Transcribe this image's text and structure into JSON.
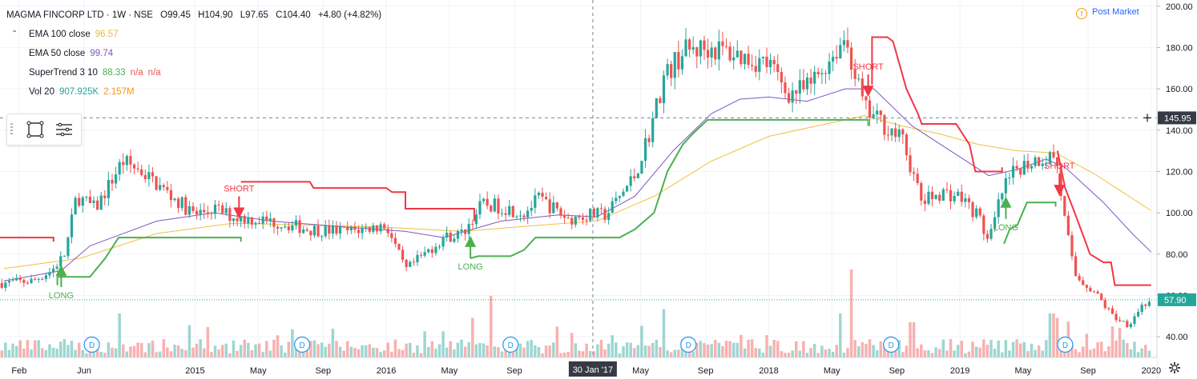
{
  "header": {
    "symbol": "MAGMA FINCORP LTD · 1W · NSE",
    "open": "O99.45",
    "high": "H104.90",
    "low": "L97.65",
    "close": "C104.40",
    "change": "+4.80 (+4.82%)"
  },
  "indicators": [
    {
      "label": "EMA 100 close",
      "value": "96.57",
      "value2": "",
      "color": "#e8b84a"
    },
    {
      "label": "EMA 50 close",
      "value": "99.74",
      "value2": "",
      "color": "#7e57c2"
    },
    {
      "label": "SuperTrend 3 10",
      "value": "88.33",
      "value2": "n/a",
      "value3": "n/a",
      "color": "#4caf50",
      "color2": "#ef5350"
    },
    {
      "label": "Vol 20",
      "value": "907.925K",
      "value2": "2.157M",
      "color": "#26a69a",
      "color2": "#ff9800"
    }
  ],
  "toolbar": {
    "icons": [
      "rectangle-icon",
      "menu-lines-icon"
    ]
  },
  "status": {
    "post_market": "Post Market",
    "icon": "warning-icon"
  },
  "colors": {
    "up": "#26a69a",
    "down": "#ef5350",
    "supertrend_up": "#4caf50",
    "supertrend_down": "#f23645",
    "ema100": "#f0c040",
    "ema50": "#7e57c2"
  },
  "chart_data": {
    "type": "candlestick",
    "interval": "1W",
    "y_axis": {
      "ticks": [
        40,
        60,
        80,
        100,
        120,
        140,
        160,
        180,
        200
      ],
      "range": [
        30,
        203
      ],
      "position": "right"
    },
    "x_axis": {
      "ticks": [
        {
          "label": "Feb",
          "t": 2014.08
        },
        {
          "label": "Jun",
          "t": 2014.42
        },
        {
          "label": "2015",
          "t": 2015.0
        },
        {
          "label": "May",
          "t": 2015.33
        },
        {
          "label": "Sep",
          "t": 2015.67
        },
        {
          "label": "2016",
          "t": 2016.0
        },
        {
          "label": "May",
          "t": 2016.33
        },
        {
          "label": "Sep",
          "t": 2016.67
        },
        {
          "label": "May",
          "t": 2017.33
        },
        {
          "label": "Sep",
          "t": 2017.67
        },
        {
          "label": "2018",
          "t": 2018.0
        },
        {
          "label": "May",
          "t": 2018.33
        },
        {
          "label": "Sep",
          "t": 2018.67
        },
        {
          "label": "2019",
          "t": 2019.0
        },
        {
          "label": "May",
          "t": 2019.33
        },
        {
          "label": "Sep",
          "t": 2019.67
        },
        {
          "label": "2020",
          "t": 2020.0
        }
      ],
      "range": [
        2013.98,
        2020.03
      ]
    },
    "crosshair": {
      "date_label": "30 Jan '17",
      "t": 2017.08,
      "price_label": "145.95",
      "price": 145.95
    },
    "last_price": {
      "label": "57.90",
      "price": 57.9
    },
    "signals": [
      {
        "type": "LONG",
        "t": 2014.3,
        "price": 71
      },
      {
        "type": "SHORT",
        "t": 2015.23,
        "price": 101
      },
      {
        "type": "LONG",
        "t": 2016.44,
        "price": 85
      },
      {
        "type": "SHORT",
        "t": 2018.52,
        "price": 160
      },
      {
        "type": "LONG",
        "t": 2019.24,
        "price": 104
      },
      {
        "type": "SHORT",
        "t": 2019.52,
        "price": 112
      }
    ],
    "dividends": [
      {
        "label": "D",
        "t": 2014.46
      },
      {
        "label": "D",
        "t": 2015.56
      },
      {
        "label": "D",
        "t": 2016.65
      },
      {
        "label": "D",
        "t": 2017.58
      },
      {
        "label": "D",
        "t": 2018.64
      },
      {
        "label": "D",
        "t": 2019.55
      }
    ],
    "price_path": [
      [
        2014.0,
        66
      ],
      [
        2014.15,
        67
      ],
      [
        2014.25,
        72
      ],
      [
        2014.32,
        80
      ],
      [
        2014.38,
        108
      ],
      [
        2014.48,
        102
      ],
      [
        2014.62,
        125
      ],
      [
        2014.72,
        120
      ],
      [
        2014.85,
        110
      ],
      [
        2015.0,
        99
      ],
      [
        2015.1,
        102
      ],
      [
        2015.2,
        98
      ],
      [
        2015.3,
        97
      ],
      [
        2015.45,
        95
      ],
      [
        2015.6,
        92
      ],
      [
        2015.8,
        91
      ],
      [
        2016.0,
        94
      ],
      [
        2016.1,
        72
      ],
      [
        2016.2,
        80
      ],
      [
        2016.3,
        88
      ],
      [
        2016.4,
        90
      ],
      [
        2016.5,
        104
      ],
      [
        2016.6,
        103
      ],
      [
        2016.72,
        100
      ],
      [
        2016.8,
        107
      ],
      [
        2016.95,
        97
      ],
      [
        2017.05,
        99
      ],
      [
        2017.15,
        99
      ],
      [
        2017.3,
        118
      ],
      [
        2017.38,
        140
      ],
      [
        2017.45,
        165
      ],
      [
        2017.55,
        178
      ],
      [
        2017.7,
        180
      ],
      [
        2017.85,
        176
      ],
      [
        2018.0,
        172
      ],
      [
        2018.1,
        158
      ],
      [
        2018.2,
        160
      ],
      [
        2018.3,
        172
      ],
      [
        2018.4,
        185
      ],
      [
        2018.45,
        168
      ],
      [
        2018.5,
        150
      ],
      [
        2018.6,
        143
      ],
      [
        2018.7,
        135
      ],
      [
        2018.8,
        105
      ],
      [
        2018.9,
        110
      ],
      [
        2019.0,
        108
      ],
      [
        2019.1,
        98
      ],
      [
        2019.15,
        85
      ],
      [
        2019.22,
        110
      ],
      [
        2019.3,
        122
      ],
      [
        2019.4,
        126
      ],
      [
        2019.5,
        128
      ],
      [
        2019.55,
        95
      ],
      [
        2019.6,
        70
      ],
      [
        2019.7,
        62
      ],
      [
        2019.8,
        50
      ],
      [
        2019.88,
        46
      ],
      [
        2019.95,
        55
      ],
      [
        2020.0,
        58
      ]
    ],
    "ema100": [
      [
        2014.0,
        73
      ],
      [
        2014.4,
        78
      ],
      [
        2014.8,
        90
      ],
      [
        2015.2,
        95
      ],
      [
        2015.6,
        94
      ],
      [
        2016.0,
        93
      ],
      [
        2016.4,
        91
      ],
      [
        2016.8,
        94
      ],
      [
        2017.1,
        96
      ],
      [
        2017.4,
        108
      ],
      [
        2017.7,
        125
      ],
      [
        2018.0,
        137
      ],
      [
        2018.3,
        143
      ],
      [
        2018.5,
        147
      ],
      [
        2018.7,
        142
      ],
      [
        2018.9,
        138
      ],
      [
        2019.1,
        133
      ],
      [
        2019.3,
        130
      ],
      [
        2019.5,
        129
      ],
      [
        2019.7,
        119
      ],
      [
        2019.9,
        107
      ],
      [
        2020.0,
        101
      ]
    ],
    "ema50": [
      [
        2014.0,
        67
      ],
      [
        2014.3,
        72
      ],
      [
        2014.45,
        84
      ],
      [
        2014.8,
        96
      ],
      [
        2015.1,
        100
      ],
      [
        2015.4,
        96
      ],
      [
        2015.8,
        93
      ],
      [
        2016.1,
        91
      ],
      [
        2016.3,
        88
      ],
      [
        2016.6,
        96
      ],
      [
        2016.9,
        99
      ],
      [
        2017.1,
        98
      ],
      [
        2017.3,
        108
      ],
      [
        2017.5,
        130
      ],
      [
        2017.7,
        148
      ],
      [
        2017.85,
        155
      ],
      [
        2018.0,
        156
      ],
      [
        2018.2,
        154
      ],
      [
        2018.4,
        160
      ],
      [
        2018.55,
        160
      ],
      [
        2018.75,
        142
      ],
      [
        2018.95,
        130
      ],
      [
        2019.15,
        118
      ],
      [
        2019.3,
        121
      ],
      [
        2019.45,
        126
      ],
      [
        2019.55,
        122
      ],
      [
        2019.75,
        105
      ],
      [
        2019.9,
        90
      ],
      [
        2020.0,
        81
      ]
    ],
    "supertrend_down": [
      [
        [
          2013.98,
          88
        ],
        [
          2014.26,
          88
        ],
        [
          2014.26,
          86
        ]
      ],
      [
        [
          2015.24,
          115
        ],
        [
          2015.6,
          115
        ],
        [
          2015.62,
          112
        ],
        [
          2016.0,
          112
        ],
        [
          2016.03,
          110
        ],
        [
          2016.1,
          110
        ],
        [
          2016.1,
          102
        ],
        [
          2016.46,
          102
        ],
        [
          2016.46,
          96
        ]
      ],
      [
        [
          2018.54,
          162
        ],
        [
          2018.54,
          185
        ],
        [
          2018.62,
          185
        ],
        [
          2018.65,
          183
        ],
        [
          2018.72,
          160
        ],
        [
          2018.78,
          148
        ],
        [
          2018.8,
          143
        ],
        [
          2018.98,
          143
        ],
        [
          2019.05,
          133
        ],
        [
          2019.08,
          120
        ],
        [
          2019.22,
          120
        ],
        [
          2019.22,
          122
        ]
      ],
      [
        [
          2019.51,
          130
        ],
        [
          2019.55,
          112
        ],
        [
          2019.6,
          100
        ],
        [
          2019.68,
          80
        ],
        [
          2019.75,
          76
        ],
        [
          2019.79,
          76
        ],
        [
          2019.81,
          65
        ],
        [
          2020.0,
          65
        ]
      ]
    ],
    "supertrend_up": [
      [
        [
          2014.28,
          65
        ],
        [
          2014.28,
          69
        ],
        [
          2014.45,
          69
        ],
        [
          2014.53,
          78
        ],
        [
          2014.6,
          88
        ],
        [
          2015.24,
          88
        ],
        [
          2015.24,
          86
        ]
      ],
      [
        [
          2016.44,
          78
        ],
        [
          2016.48,
          79
        ],
        [
          2016.65,
          79
        ],
        [
          2016.72,
          82
        ],
        [
          2016.78,
          88
        ],
        [
          2017.22,
          88
        ],
        [
          2017.3,
          92
        ],
        [
          2017.4,
          100
        ],
        [
          2017.47,
          120
        ],
        [
          2017.55,
          133
        ],
        [
          2017.6,
          138
        ],
        [
          2017.68,
          145
        ],
        [
          2018.52,
          145
        ],
        [
          2018.52,
          142
        ]
      ],
      [
        [
          2019.23,
          85
        ],
        [
          2019.26,
          92
        ],
        [
          2019.3,
          94
        ],
        [
          2019.35,
          105
        ],
        [
          2019.5,
          105
        ],
        [
          2019.5,
          103
        ]
      ]
    ],
    "volume_spikes": [
      {
        "t": 2014.6,
        "h": 0.5
      },
      {
        "t": 2016.45,
        "h": 0.45
      },
      {
        "t": 2016.55,
        "h": 0.7
      },
      {
        "t": 2016.9,
        "h": 0.35
      },
      {
        "t": 2017.45,
        "h": 0.55
      },
      {
        "t": 2018.43,
        "h": 1.0
      },
      {
        "t": 2018.38,
        "h": 0.5
      },
      {
        "t": 2018.75,
        "h": 0.4
      },
      {
        "t": 2019.48,
        "h": 0.5
      },
      {
        "t": 2019.5,
        "h": 0.45
      }
    ]
  }
}
